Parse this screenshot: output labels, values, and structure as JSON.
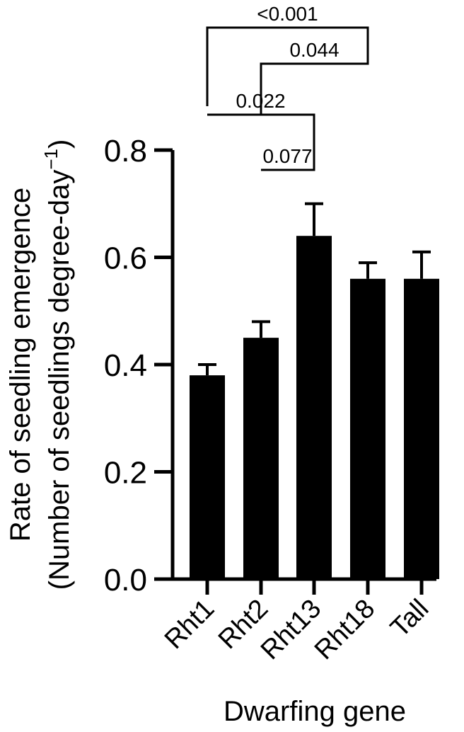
{
  "chart_data": {
    "type": "bar",
    "categories": [
      "Rht1",
      "Rht2",
      "Rht13",
      "Rht18",
      "Tall"
    ],
    "values": [
      0.38,
      0.45,
      0.64,
      0.56,
      0.56
    ],
    "errors": [
      0.02,
      0.03,
      0.06,
      0.03,
      0.05
    ],
    "ylim": [
      0,
      0.8
    ],
    "yticks": [
      0.0,
      0.2,
      0.4,
      0.6,
      0.8
    ],
    "ytick_labels": [
      "0.0",
      "0.2",
      "0.4",
      "0.6",
      "0.8"
    ],
    "xlabel": "Dwarfing gene",
    "ylabel_line1": "Rate of seedling emergence",
    "ylabel_line2_main": "(Number of seedlings degree-day",
    "ylabel_line2_sup": "−1",
    "ylabel_line2_end": ")",
    "bar_color": "#000000",
    "comparisons": [
      {
        "from": "Rht1",
        "to": "Rht18",
        "label": "<0.001"
      },
      {
        "from": "Rht2",
        "to": "Rht18",
        "label": "0.044"
      },
      {
        "from": "Rht1",
        "to": "Rht13",
        "label": "0.022"
      },
      {
        "from": "Rht2",
        "to": "Rht13",
        "label": "0.077"
      }
    ]
  }
}
